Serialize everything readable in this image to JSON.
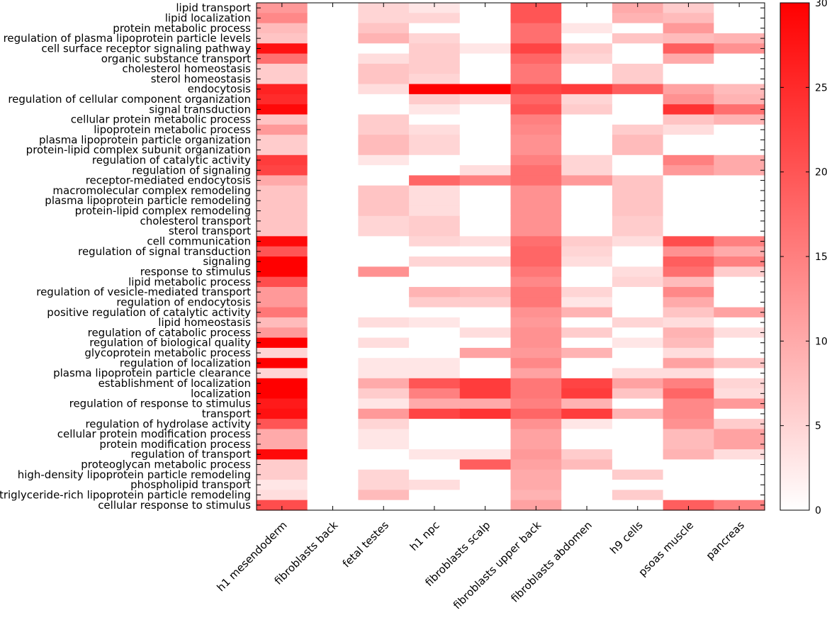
{
  "chart_data": {
    "type": "heatmap",
    "title": "",
    "xlabel": "",
    "ylabel": "",
    "colormap": {
      "low": "#ffffff",
      "high": "#ff0000"
    },
    "value_range": [
      0,
      30
    ],
    "colorbar_ticks": [
      0,
      5,
      10,
      15,
      20,
      25,
      30
    ],
    "columns": [
      "h1 mesendoderm",
      "fibroblasts back",
      "fetal testes",
      "h1 npc",
      "fibroblasts scalp",
      "fibroblasts upper back",
      "fibroblasts abdomen",
      "h9 cells",
      "psoas muscle",
      "pancreas"
    ],
    "rows": [
      "lipid transport",
      "lipid localization",
      "protein metabolic process",
      "regulation of plasma lipoprotein particle levels",
      "cell surface receptor signaling pathway",
      "organic substance transport",
      "cholesterol homeostasis",
      "sterol homeostasis",
      "endocytosis",
      "regulation of cellular component organization",
      "signal transduction",
      "cellular protein metabolic process",
      "lipoprotein metabolic process",
      "plasma lipoprotein particle organization",
      "protein-lipid complex subunit organization",
      "regulation of catalytic activity",
      "regulation of signaling",
      "receptor-mediated endocytosis",
      "macromolecular complex remodeling",
      "plasma lipoprotein particle remodeling",
      "protein-lipid complex remodeling",
      "cholesterol transport",
      "sterol transport",
      "cell communication",
      "regulation of signal transduction",
      "signaling",
      "response to stimulus",
      "lipid metabolic process",
      "regulation of vesicle-mediated transport",
      "regulation of endocytosis",
      "positive regulation of catalytic activity",
      "lipid homeostasis",
      "regulation of catabolic process",
      "regulation of biological quality",
      "glycoprotein metabolic process",
      "regulation of localization",
      "plasma lipoprotein particle clearance",
      "establishment of localization",
      "localization",
      "regulation of response to stimulus",
      "transport",
      "regulation of hydrolase activity",
      "cellular protein modification process",
      "protein modification process",
      "regulation of transport",
      "proteoglycan metabolic process",
      "high-density lipoprotein particle remodeling",
      "phospholipid transport",
      "triglyceride-rich lipoprotein particle remodeling",
      "cellular response to stimulus"
    ],
    "values": [
      [
        12,
        0,
        5,
        3,
        0,
        20,
        0,
        10,
        6,
        0
      ],
      [
        14,
        0,
        5,
        5,
        0,
        20,
        0,
        9,
        8,
        0
      ],
      [
        8,
        0,
        7,
        0,
        0,
        17,
        3,
        0,
        12,
        0
      ],
      [
        7,
        0,
        9,
        5,
        0,
        17,
        0,
        7,
        8,
        9
      ],
      [
        28,
        0,
        0,
        6,
        3,
        22,
        6,
        0,
        19,
        13
      ],
      [
        17,
        0,
        4,
        6,
        0,
        18,
        5,
        0,
        10,
        0
      ],
      [
        6,
        0,
        7,
        6,
        0,
        16,
        0,
        6,
        0,
        0
      ],
      [
        6,
        0,
        7,
        5,
        0,
        16,
        0,
        6,
        0,
        0
      ],
      [
        26,
        0,
        4,
        30,
        30,
        22,
        23,
        19,
        11,
        8
      ],
      [
        25,
        0,
        0,
        6,
        4,
        18,
        5,
        0,
        13,
        9
      ],
      [
        29,
        0,
        0,
        3,
        0,
        20,
        6,
        0,
        24,
        17
      ],
      [
        7,
        0,
        6,
        0,
        0,
        15,
        0,
        0,
        7,
        9
      ],
      [
        12,
        0,
        6,
        4,
        0,
        14,
        0,
        6,
        4,
        0
      ],
      [
        6,
        0,
        8,
        5,
        0,
        13,
        0,
        8,
        0,
        0
      ],
      [
        6,
        0,
        8,
        5,
        0,
        13,
        0,
        8,
        0,
        0
      ],
      [
        23,
        0,
        3,
        0,
        0,
        15,
        5,
        0,
        15,
        10
      ],
      [
        22,
        0,
        0,
        0,
        4,
        17,
        5,
        0,
        12,
        10
      ],
      [
        10,
        0,
        0,
        18,
        15,
        17,
        12,
        7,
        0,
        0
      ],
      [
        7,
        0,
        7,
        4,
        0,
        13,
        0,
        7,
        0,
        0
      ],
      [
        7,
        0,
        7,
        4,
        0,
        13,
        0,
        7,
        0,
        0
      ],
      [
        7,
        0,
        7,
        4,
        0,
        13,
        0,
        7,
        0,
        0
      ],
      [
        7,
        0,
        5,
        6,
        0,
        13,
        0,
        6,
        0,
        0
      ],
      [
        7,
        0,
        5,
        6,
        0,
        13,
        0,
        6,
        0,
        0
      ],
      [
        29,
        0,
        0,
        5,
        4,
        17,
        6,
        4,
        21,
        15
      ],
      [
        20,
        0,
        0,
        0,
        0,
        18,
        5,
        0,
        13,
        10
      ],
      [
        30,
        0,
        0,
        5,
        5,
        18,
        4,
        0,
        19,
        15
      ],
      [
        30,
        0,
        13,
        0,
        0,
        16,
        0,
        4,
        17,
        6
      ],
      [
        21,
        0,
        0,
        0,
        0,
        14,
        0,
        5,
        8,
        0
      ],
      [
        12,
        0,
        0,
        9,
        8,
        16,
        5,
        0,
        14,
        0
      ],
      [
        12,
        0,
        0,
        6,
        6,
        16,
        3,
        0,
        10,
        0
      ],
      [
        16,
        0,
        0,
        0,
        0,
        13,
        9,
        0,
        7,
        11
      ],
      [
        8,
        0,
        4,
        3,
        0,
        12,
        0,
        5,
        4,
        0
      ],
      [
        12,
        0,
        0,
        0,
        4,
        13,
        6,
        0,
        9,
        4
      ],
      [
        30,
        0,
        4,
        0,
        0,
        13,
        0,
        3,
        8,
        0
      ],
      [
        5,
        0,
        0,
        0,
        11,
        12,
        9,
        0,
        4,
        0
      ],
      [
        30,
        0,
        3,
        3,
        0,
        14,
        0,
        0,
        11,
        7
      ],
      [
        5,
        0,
        3,
        3,
        0,
        11,
        0,
        4,
        4,
        0
      ],
      [
        30,
        0,
        10,
        20,
        23,
        16,
        22,
        11,
        15,
        5
      ],
      [
        30,
        0,
        6,
        15,
        23,
        16,
        23,
        7,
        18,
        4
      ],
      [
        27,
        0,
        3,
        10,
        10,
        15,
        9,
        0,
        14,
        12
      ],
      [
        28,
        0,
        12,
        22,
        24,
        18,
        23,
        9,
        14,
        0
      ],
      [
        20,
        0,
        5,
        0,
        0,
        13,
        3,
        0,
        13,
        6
      ],
      [
        10,
        0,
        3,
        0,
        0,
        11,
        0,
        0,
        8,
        11
      ],
      [
        10,
        0,
        3,
        0,
        0,
        11,
        0,
        0,
        8,
        11
      ],
      [
        29,
        0,
        0,
        3,
        3,
        12,
        6,
        0,
        9,
        4
      ],
      [
        6,
        0,
        0,
        0,
        19,
        11,
        8,
        0,
        0,
        0
      ],
      [
        6,
        0,
        5,
        0,
        0,
        10,
        0,
        6,
        0,
        0
      ],
      [
        3,
        0,
        5,
        4,
        0,
        10,
        0,
        0,
        0,
        0
      ],
      [
        4,
        0,
        8,
        0,
        0,
        9,
        0,
        6,
        0,
        0
      ],
      [
        21,
        0,
        0,
        0,
        0,
        11,
        0,
        0,
        19,
        15
      ]
    ]
  }
}
